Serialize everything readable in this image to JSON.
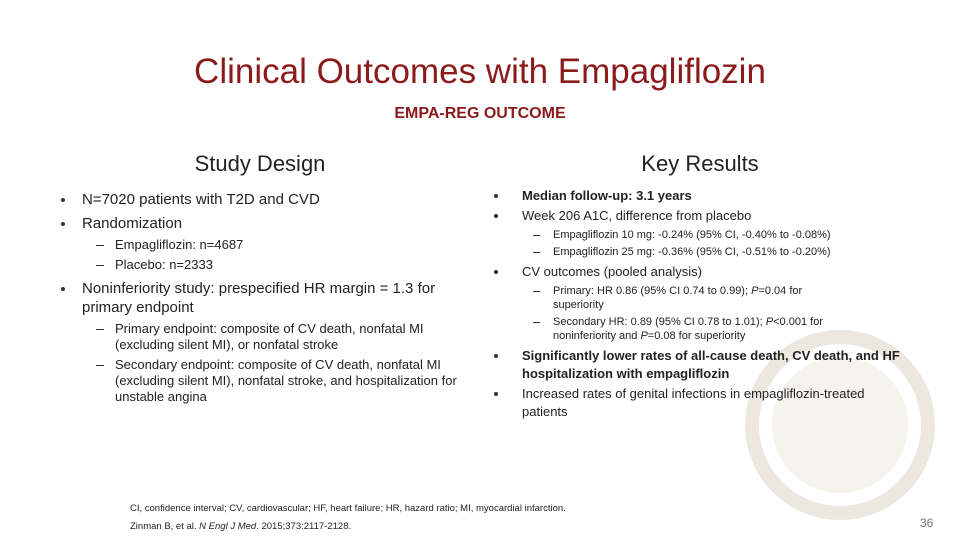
{
  "title": "Clinical Outcomes with Empagliflozin",
  "subtitle": "EMPA-REG OUTCOME",
  "left": {
    "heading": "Study Design",
    "items": [
      {
        "runs": [
          {
            "text": "N=7020 patients with T2D and CVD"
          }
        ]
      },
      {
        "runs": [
          {
            "text": "Randomization"
          }
        ],
        "sub": [
          {
            "runs": [
              {
                "text": "Empagliflozin: n=4687"
              }
            ]
          },
          {
            "runs": [
              {
                "text": "Placebo: n=2333"
              }
            ]
          }
        ]
      },
      {
        "runs": [
          {
            "text": "Noninferiority study"
          },
          {
            "text": ": prespecified HR margin = 1.3 for primary endpoint"
          }
        ],
        "sub": [
          {
            "runs": [
              {
                "text": "Primary endpoint: composite of CV death, nonfatal MI (excluding silent MI), or nonfatal stroke"
              }
            ]
          },
          {
            "runs": [
              {
                "text": "Secondary endpoint: composite of CV death, nonfatal MI (excluding silent MI), nonfatal stroke, and hospitalization for unstable angina"
              }
            ]
          }
        ]
      }
    ]
  },
  "right": {
    "heading": "Key Results",
    "items": [
      {
        "runs": [
          {
            "text": "Median follow-up: 3.1 years",
            "bold": true
          }
        ]
      },
      {
        "runs": [
          {
            "text": "Week 206 A1C, difference from placebo"
          }
        ],
        "sub": [
          {
            "runs": [
              {
                "text": "Empagliflozin 10 mg: -0.24% (95% CI, -0.40% to -0.08%)"
              }
            ]
          },
          {
            "runs": [
              {
                "text": "Empagliflozin 25 mg: -0.36% (95% CI, -0.51% to -0.20%)"
              }
            ]
          }
        ]
      },
      {
        "runs": [
          {
            "text": "CV outcomes (pooled analysis)"
          }
        ],
        "sub": [
          {
            "runs": [
              {
                "text": "Primary: HR 0.86 (95% CI 0.74 to 0.99); "
              },
              {
                "text": "P",
                "italic": true
              },
              {
                "text": "=0.04 for superiority"
              }
            ]
          },
          {
            "runs": [
              {
                "text": "Secondary HR: 0.89 (95% CI 0.78 to 1.01); "
              },
              {
                "text": "P",
                "italic": true
              },
              {
                "text": "<0.001 for noninferiority and "
              },
              {
                "text": "P",
                "italic": true
              },
              {
                "text": "=0.08 for superiority"
              }
            ]
          }
        ]
      },
      {
        "runs": [
          {
            "text": "Significantly lower rates of all-cause death, CV death, and HF hospitalization with empagliflozin",
            "bold": true
          }
        ]
      },
      {
        "runs": [
          {
            "text": "Increased rates of genital infections in empagliflozin-treated patients"
          }
        ]
      }
    ]
  },
  "footnote": "CI, confidence interval; CV, cardiovascular; HF, heart failure; HR, hazard ratio; MI, myocardial infarction.",
  "reference": {
    "runs": [
      {
        "text": "Zinman B, et al. "
      },
      {
        "text": "N Engl J Med",
        "italic": true
      },
      {
        "text": ". 2015;373:2117-2128."
      }
    ]
  },
  "page_number": "36"
}
